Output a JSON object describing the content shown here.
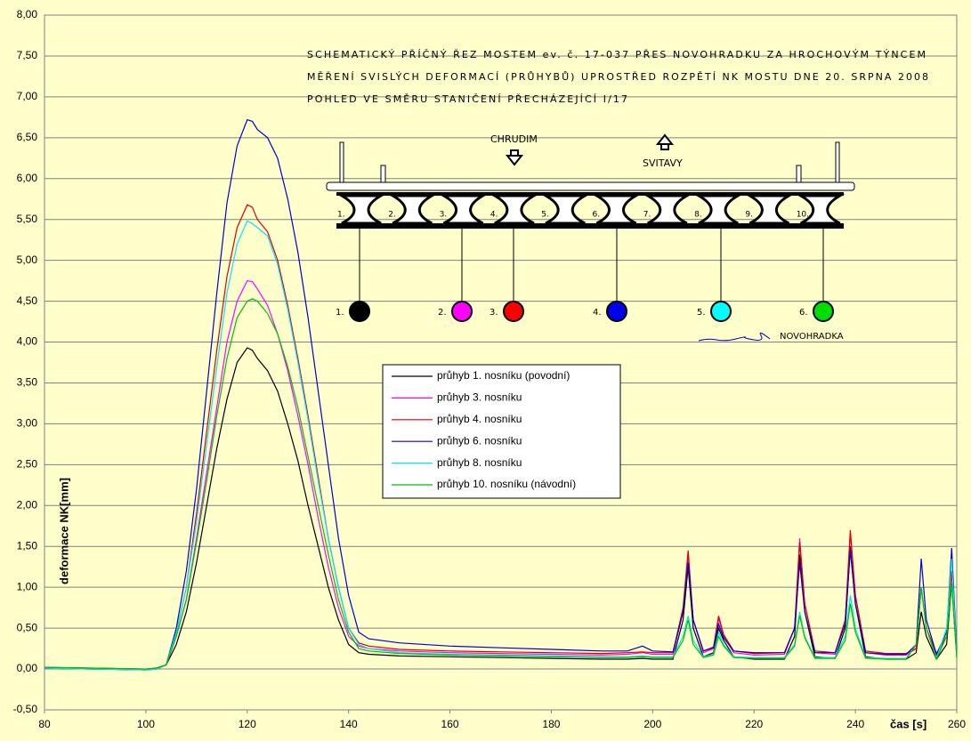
{
  "chart_data": {
    "type": "line",
    "x_label": "čas [s]",
    "y_label": "deformace NK[mm]",
    "xlim": [
      80,
      260
    ],
    "xticks": [
      80,
      100,
      120,
      140,
      160,
      180,
      200,
      220,
      240,
      260
    ],
    "ylim": [
      -0.5,
      8
    ],
    "yticks": [
      {
        "value": -0.5,
        "label": "-0,50"
      },
      {
        "value": 0,
        "label": "0,00"
      },
      {
        "value": 0.5,
        "label": "0,50"
      },
      {
        "value": 1,
        "label": "1,00"
      },
      {
        "value": 1.5,
        "label": "1,50"
      },
      {
        "value": 2,
        "label": "2,00"
      },
      {
        "value": 2.5,
        "label": "2,50"
      },
      {
        "value": 3,
        "label": "3,00"
      },
      {
        "value": 3.5,
        "label": "3,50"
      },
      {
        "value": 4,
        "label": "4,00"
      },
      {
        "value": 4.5,
        "label": "4,50"
      },
      {
        "value": 5,
        "label": "5,00"
      },
      {
        "value": 5.5,
        "label": "5,50"
      },
      {
        "value": 6,
        "label": "6,00"
      },
      {
        "value": 6.5,
        "label": "6,50"
      },
      {
        "value": 7,
        "label": "7,00"
      },
      {
        "value": 7.5,
        "label": "7,50"
      },
      {
        "value": 8,
        "label": "8,00"
      }
    ],
    "grid": true,
    "x": [
      80,
      90,
      100,
      102,
      104,
      106,
      108,
      110,
      112,
      114,
      116,
      118,
      120,
      121,
      122,
      124,
      126,
      128,
      130,
      132,
      134,
      136,
      138,
      140,
      142,
      144,
      150,
      160,
      170,
      180,
      190,
      195,
      198,
      200,
      204,
      206,
      207,
      208,
      210,
      212,
      213,
      214,
      216,
      220,
      226,
      228,
      229,
      230,
      232,
      236,
      238,
      239,
      240,
      242,
      246,
      250,
      252,
      253,
      254,
      256,
      258,
      259,
      260
    ],
    "series": [
      {
        "name": "průhyb 1. nosníku (povodní)",
        "color": "#000000",
        "values": [
          0.01,
          0.0,
          -0.01,
          0.0,
          0.05,
          0.3,
          0.7,
          1.3,
          2.0,
          2.7,
          3.3,
          3.75,
          3.93,
          3.9,
          3.8,
          3.65,
          3.4,
          3.0,
          2.55,
          2.0,
          1.5,
          1.0,
          0.6,
          0.3,
          0.2,
          0.18,
          0.16,
          0.15,
          0.14,
          0.13,
          0.12,
          0.12,
          0.13,
          0.12,
          0.12,
          0.6,
          1.25,
          0.5,
          0.15,
          0.2,
          0.5,
          0.35,
          0.15,
          0.12,
          0.12,
          0.4,
          1.4,
          0.7,
          0.15,
          0.13,
          0.5,
          1.5,
          0.8,
          0.15,
          0.12,
          0.12,
          0.2,
          0.7,
          0.4,
          0.12,
          0.3,
          1.05,
          0.15
        ]
      },
      {
        "name": "průhyb 3. nosníku",
        "color": "#ff00ff",
        "values": [
          0.02,
          0.01,
          0.0,
          0.01,
          0.05,
          0.4,
          0.85,
          1.6,
          2.4,
          3.2,
          4.0,
          4.5,
          4.75,
          4.74,
          4.65,
          4.45,
          4.1,
          3.65,
          3.1,
          2.5,
          1.85,
          1.25,
          0.75,
          0.4,
          0.28,
          0.25,
          0.22,
          0.2,
          0.19,
          0.18,
          0.17,
          0.18,
          0.2,
          0.18,
          0.18,
          0.7,
          1.4,
          0.6,
          0.2,
          0.25,
          0.62,
          0.4,
          0.2,
          0.17,
          0.18,
          0.5,
          1.6,
          0.8,
          0.2,
          0.18,
          0.6,
          1.65,
          0.9,
          0.2,
          0.17,
          0.17,
          0.25,
          1.0,
          0.5,
          0.17,
          0.4,
          1.2,
          0.18
        ]
      },
      {
        "name": "průhyb 4. nosníku",
        "color": "#dd0000",
        "values": [
          0.02,
          0.01,
          0.0,
          0.01,
          0.05,
          0.45,
          1.0,
          1.9,
          2.9,
          3.9,
          4.8,
          5.4,
          5.68,
          5.65,
          5.5,
          5.35,
          5.0,
          4.45,
          3.8,
          3.1,
          2.35,
          1.6,
          1.0,
          0.5,
          0.32,
          0.28,
          0.24,
          0.22,
          0.21,
          0.2,
          0.19,
          0.2,
          0.21,
          0.2,
          0.2,
          0.75,
          1.45,
          0.6,
          0.22,
          0.27,
          0.65,
          0.42,
          0.22,
          0.19,
          0.2,
          0.5,
          1.55,
          0.8,
          0.22,
          0.2,
          0.6,
          1.7,
          0.9,
          0.22,
          0.19,
          0.19,
          0.25,
          1.0,
          0.5,
          0.19,
          0.4,
          1.2,
          0.2
        ]
      },
      {
        "name": "průhyb 6. nosníku",
        "color": "#0000cc",
        "values": [
          0.01,
          0.0,
          -0.01,
          0.0,
          0.05,
          0.5,
          1.2,
          2.2,
          3.4,
          4.6,
          5.7,
          6.4,
          6.72,
          6.7,
          6.6,
          6.5,
          6.25,
          5.75,
          5.1,
          4.3,
          3.4,
          2.5,
          1.6,
          0.9,
          0.45,
          0.37,
          0.32,
          0.28,
          0.26,
          0.24,
          0.22,
          0.22,
          0.28,
          0.22,
          0.21,
          0.7,
          1.3,
          0.6,
          0.22,
          0.26,
          0.55,
          0.38,
          0.22,
          0.2,
          0.2,
          0.5,
          1.3,
          0.7,
          0.2,
          0.2,
          0.55,
          1.45,
          0.8,
          0.2,
          0.18,
          0.18,
          0.3,
          1.35,
          0.6,
          0.18,
          0.45,
          1.48,
          0.2
        ]
      },
      {
        "name": "průhyb 8. nosníku",
        "color": "#00e5ff",
        "values": [
          0.01,
          0.0,
          -0.01,
          0.0,
          0.05,
          0.45,
          1.0,
          1.8,
          2.75,
          3.7,
          4.6,
          5.2,
          5.48,
          5.45,
          5.4,
          5.3,
          4.95,
          4.4,
          3.75,
          3.05,
          2.3,
          1.6,
          1.0,
          0.5,
          0.3,
          0.25,
          0.2,
          0.18,
          0.17,
          0.16,
          0.15,
          0.15,
          0.16,
          0.15,
          0.15,
          0.4,
          0.65,
          0.35,
          0.15,
          0.18,
          0.45,
          0.3,
          0.15,
          0.14,
          0.14,
          0.3,
          0.7,
          0.4,
          0.14,
          0.14,
          0.4,
          0.9,
          0.5,
          0.14,
          0.13,
          0.13,
          0.3,
          1.0,
          0.5,
          0.13,
          0.5,
          1.35,
          0.15
        ]
      },
      {
        "name": "průhyb 10. nosníku (návodní)",
        "color": "#00c000",
        "values": [
          0.02,
          0.01,
          0.0,
          0.01,
          0.05,
          0.4,
          0.85,
          1.55,
          2.3,
          3.1,
          3.8,
          4.3,
          4.5,
          4.53,
          4.5,
          4.35,
          4.1,
          3.7,
          3.2,
          2.6,
          2.0,
          1.4,
          0.85,
          0.45,
          0.25,
          0.22,
          0.19,
          0.17,
          0.16,
          0.15,
          0.14,
          0.14,
          0.15,
          0.14,
          0.14,
          0.35,
          0.6,
          0.3,
          0.14,
          0.17,
          0.4,
          0.28,
          0.14,
          0.13,
          0.13,
          0.28,
          0.65,
          0.38,
          0.13,
          0.13,
          0.35,
          0.8,
          0.45,
          0.13,
          0.12,
          0.12,
          0.3,
          1.0,
          0.5,
          0.12,
          0.4,
          1.05,
          0.14
        ]
      }
    ],
    "schematic": {
      "title_lines": [
        "SCHEMATICKÝ PŘÍČNÝ ŘEZ MOSTEM ev. č. 17-037 PŘES NOVOHRADKU ZA HROCHOVÝM TÝNCEM",
        "MĚŘENÍ SVISLÝCH DEFORMACÍ (PRŮHYBŮ) UPROSTŘED ROZPĚTÍ NK MOSTU DNE 20. SRPNA 2008",
        "POHLED VE SMĚRU STANIČENÍ PŘECHÁZEJÍCÍ I/17"
      ],
      "direction_left": "CHRUDIM",
      "direction_right": "SVITAVY",
      "river": "NOVOHRADKA",
      "girders": [
        "1.",
        "2.",
        "3.",
        "4.",
        "5.",
        "6.",
        "7.",
        "8.",
        "9.",
        "10."
      ],
      "sensors": [
        {
          "label": "1.",
          "color": "#000000"
        },
        {
          "label": "2.",
          "color": "#ff00ff"
        },
        {
          "label": "3.",
          "color": "#ff0000"
        },
        {
          "label": "4.",
          "color": "#0000ee"
        },
        {
          "label": "5.",
          "color": "#00ffff"
        },
        {
          "label": "6.",
          "color": "#00dd00"
        }
      ]
    }
  }
}
